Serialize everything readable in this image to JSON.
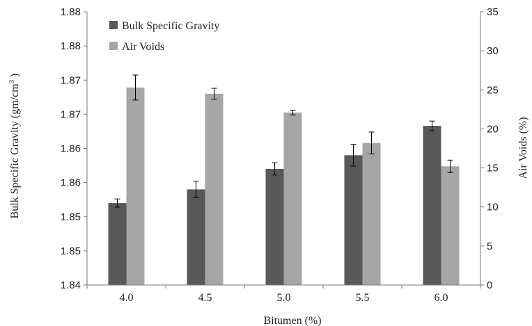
{
  "chart_data": {
    "type": "bar",
    "title": "",
    "xlabel": "Bitumen (%)",
    "ylabel_left": "Bulk Specific Gravity (gm/cm",
    "ylabel_left_sup": "3",
    "ylabel_left_end": " )",
    "ylabel_right": "Air Voids (%)",
    "categories": [
      "4.0",
      "4.5",
      "5.0",
      "5.5",
      "6.0"
    ],
    "left_axis": {
      "min": 1.84,
      "max": 1.88,
      "tick_values": [
        1.84,
        1.845,
        1.85,
        1.855,
        1.86,
        1.865,
        1.87,
        1.875,
        1.88
      ],
      "tick_labels": [
        "1.84",
        "1.85",
        "1.85",
        "1.86",
        "1.86",
        "1.87",
        "1.87",
        "1.88",
        "1.88"
      ]
    },
    "right_axis": {
      "min": 0,
      "max": 35,
      "tick_values": [
        0,
        5,
        10,
        15,
        20,
        25,
        30,
        35
      ],
      "tick_labels": [
        "0",
        "5",
        "10",
        "15",
        "20",
        "25",
        "30",
        "35"
      ]
    },
    "series": [
      {
        "name": "Bulk Specific Gravity",
        "axis": "left",
        "color": "#595959",
        "values": [
          1.852,
          1.854,
          1.857,
          1.859,
          1.8633
        ],
        "error": [
          0.0006,
          0.0012,
          0.0009,
          0.0016,
          0.0007
        ]
      },
      {
        "name": "Air Voids",
        "axis": "right",
        "color": "#a6a6a6",
        "values": [
          25.3,
          24.5,
          22.1,
          18.2,
          15.2
        ],
        "error": [
          1.6,
          0.7,
          0.3,
          1.4,
          0.8
        ]
      }
    ],
    "legend_position": "top-left",
    "grid": false
  }
}
